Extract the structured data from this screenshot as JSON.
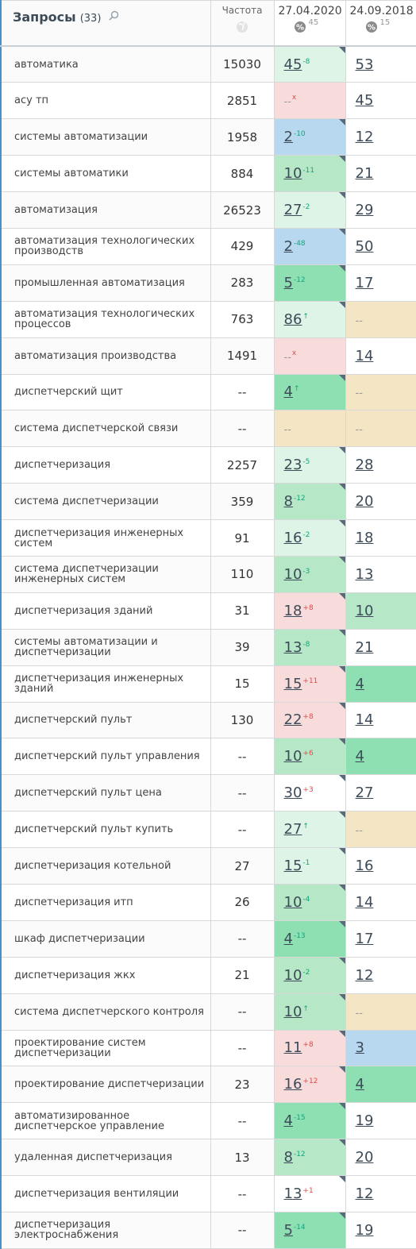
{
  "header": {
    "query_title": "Запросы",
    "query_count": "(33)",
    "freq_label": "Частота",
    "date1": "27.04.2020",
    "date1_pct": "45",
    "date2": "24.09.2018",
    "date2_pct": "15"
  },
  "colors": {
    "lightgreen": "#def4e6",
    "green": "#b6e8c8",
    "strong": "#8ee0b2",
    "blue": "#b8d8f0",
    "pink": "#f8dcdc",
    "beige": "#f4e6c4",
    "accent": "#4a90c0"
  },
  "rows": [
    {
      "query": "автоматика",
      "freq": "15030",
      "p1": "45",
      "d1": "-8",
      "c1": "lightgreen",
      "p2": "53",
      "c2": "white"
    },
    {
      "query": "асу тп",
      "freq": "2851",
      "p1": "--",
      "d1": "x",
      "c1": "pink",
      "p2": "45",
      "c2": "white"
    },
    {
      "query": "системы автоматизации",
      "freq": "1958",
      "p1": "2",
      "d1": "-10",
      "c1": "blue",
      "p2": "12",
      "c2": "white"
    },
    {
      "query": "системы автоматики",
      "freq": "884",
      "p1": "10",
      "d1": "-11",
      "c1": "green",
      "p2": "21",
      "c2": "white"
    },
    {
      "query": "автоматизация",
      "freq": "26523",
      "p1": "27",
      "d1": "-2",
      "c1": "lightgreen",
      "p2": "29",
      "c2": "white"
    },
    {
      "query": "автоматизация технологических производств",
      "freq": "429",
      "p1": "2",
      "d1": "-48",
      "c1": "blue",
      "p2": "50",
      "c2": "white"
    },
    {
      "query": "промышленная автоматизация",
      "freq": "283",
      "p1": "5",
      "d1": "-12",
      "c1": "strong",
      "p2": "17",
      "c2": "white"
    },
    {
      "query": "автоматизация технологических процессов",
      "freq": "763",
      "p1": "86",
      "d1": "↑",
      "c1": "lightgreen",
      "p2": "--",
      "c2": "beige"
    },
    {
      "query": "автоматизация производства",
      "freq": "1491",
      "p1": "--",
      "d1": "x",
      "c1": "pink",
      "p2": "14",
      "c2": "white"
    },
    {
      "query": "диспетчерский щит",
      "freq": "--",
      "p1": "4",
      "d1": "↑",
      "c1": "strong",
      "p2": "--",
      "c2": "beige"
    },
    {
      "query": "система диспетчерской связи",
      "freq": "--",
      "p1": "--",
      "d1": "",
      "c1": "beige",
      "p2": "--",
      "c2": "beige"
    },
    {
      "query": "диспетчеризация",
      "freq": "2257",
      "p1": "23",
      "d1": "-5",
      "c1": "lightgreen",
      "p2": "28",
      "c2": "white"
    },
    {
      "query": "система диспетчеризации",
      "freq": "359",
      "p1": "8",
      "d1": "-12",
      "c1": "green",
      "p2": "20",
      "c2": "white"
    },
    {
      "query": "диспетчеризация инженерных систем",
      "freq": "91",
      "p1": "16",
      "d1": "-2",
      "c1": "lightgreen",
      "p2": "18",
      "c2": "white"
    },
    {
      "query": "система диспетчеризации инженерных систем",
      "freq": "110",
      "p1": "10",
      "d1": "-3",
      "c1": "green",
      "p2": "13",
      "c2": "white"
    },
    {
      "query": "диспетчеризация зданий",
      "freq": "31",
      "p1": "18",
      "d1": "+8",
      "c1": "pink",
      "p2": "10",
      "c2": "green"
    },
    {
      "query": "системы автоматизации и диспетчеризации",
      "freq": "39",
      "p1": "13",
      "d1": "-8",
      "c1": "green",
      "p2": "21",
      "c2": "white"
    },
    {
      "query": "диспетчеризация инженерных зданий",
      "freq": "15",
      "p1": "15",
      "d1": "+11",
      "c1": "pink",
      "p2": "4",
      "c2": "strong"
    },
    {
      "query": "диспетчерский пульт",
      "freq": "130",
      "p1": "22",
      "d1": "+8",
      "c1": "pink",
      "p2": "14",
      "c2": "white"
    },
    {
      "query": "диспетчерский пульт управления",
      "freq": "--",
      "p1": "10",
      "d1": "+6",
      "c1": "green",
      "p2": "4",
      "c2": "strong"
    },
    {
      "query": "диспетчерский пульт цена",
      "freq": "--",
      "p1": "30",
      "d1": "+3",
      "c1": "white",
      "p2": "27",
      "c2": "white"
    },
    {
      "query": "диспетчерский пульт купить",
      "freq": "--",
      "p1": "27",
      "d1": "↑",
      "c1": "lightgreen",
      "p2": "--",
      "c2": "beige"
    },
    {
      "query": "диспетчеризация котельной",
      "freq": "27",
      "p1": "15",
      "d1": "-1",
      "c1": "lightgreen",
      "p2": "16",
      "c2": "white"
    },
    {
      "query": "диспетчеризация итп",
      "freq": "26",
      "p1": "10",
      "d1": "-4",
      "c1": "green",
      "p2": "14",
      "c2": "white"
    },
    {
      "query": "шкаф диспетчеризации",
      "freq": "--",
      "p1": "4",
      "d1": "-13",
      "c1": "strong",
      "p2": "17",
      "c2": "white"
    },
    {
      "query": "диспетчеризация жкх",
      "freq": "21",
      "p1": "10",
      "d1": "-2",
      "c1": "green",
      "p2": "12",
      "c2": "white"
    },
    {
      "query": "система диспетчерского контроля",
      "freq": "--",
      "p1": "10",
      "d1": "↑",
      "c1": "green",
      "p2": "--",
      "c2": "beige"
    },
    {
      "query": "проектирование систем диспетчеризации",
      "freq": "--",
      "p1": "11",
      "d1": "+8",
      "c1": "pink",
      "p2": "3",
      "c2": "blue"
    },
    {
      "query": "проектирование диспетчеризации",
      "freq": "23",
      "p1": "16",
      "d1": "+12",
      "c1": "pink",
      "p2": "4",
      "c2": "strong"
    },
    {
      "query": "автоматизированное диспетчерское управление",
      "freq": "--",
      "p1": "4",
      "d1": "-15",
      "c1": "strong",
      "p2": "19",
      "c2": "white"
    },
    {
      "query": "удаленная диспетчеризация",
      "freq": "13",
      "p1": "8",
      "d1": "-12",
      "c1": "green",
      "p2": "20",
      "c2": "white"
    },
    {
      "query": "диспетчеризация вентиляции",
      "freq": "--",
      "p1": "13",
      "d1": "+1",
      "c1": "white",
      "p2": "12",
      "c2": "white"
    },
    {
      "query": "диспетчеризация электроснабжения",
      "freq": "--",
      "p1": "5",
      "d1": "-14",
      "c1": "strong",
      "p2": "19",
      "c2": "white"
    }
  ]
}
